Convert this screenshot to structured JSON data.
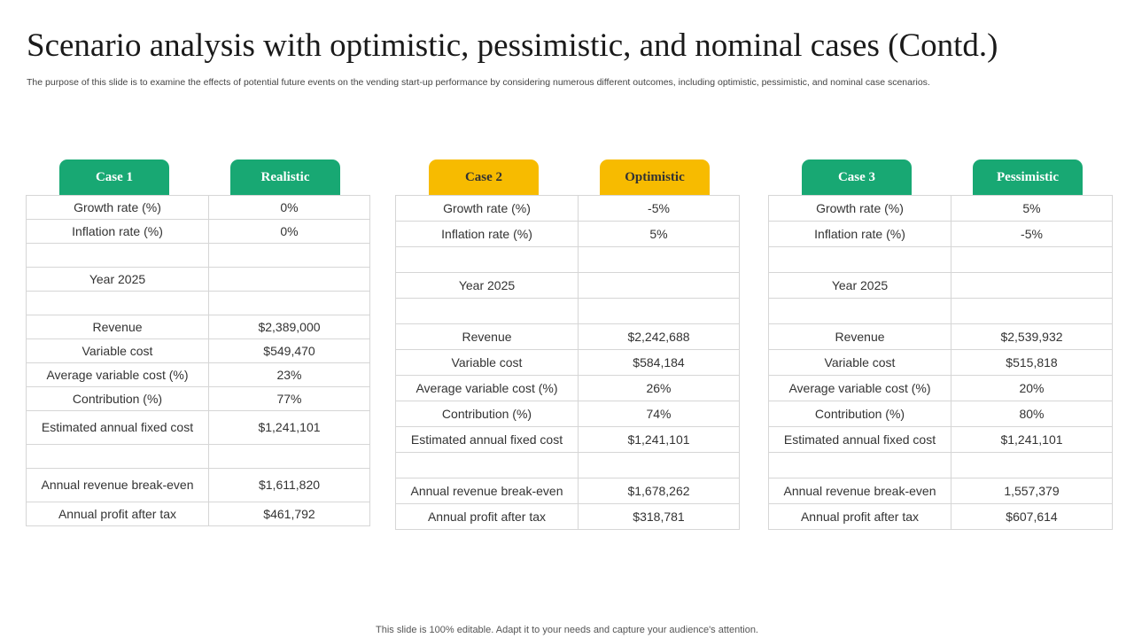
{
  "title": "Scenario analysis with optimistic, pessimistic, and nominal cases (Contd.)",
  "subtitle": "The purpose of this slide is to examine the effects of potential future events on the vending start-up performance by considering numerous different outcomes, including optimistic, pessimistic, and nominal case scenarios.",
  "footer": "This slide is 100% editable. Adapt it to your needs and capture your audience's attention.",
  "colors": {
    "green": "#18a873",
    "yellow": "#f7bb00"
  },
  "panels": [
    {
      "case_label": "Case 1",
      "scenario_label": "Realistic",
      "rows": [
        {
          "label": "Growth rate (%)",
          "value": "0%"
        },
        {
          "label": "Inflation rate (%)",
          "value": "0%"
        },
        {
          "label": "",
          "value": ""
        },
        {
          "label": "Year 2025",
          "value": ""
        },
        {
          "label": "",
          "value": ""
        },
        {
          "label": "Revenue",
          "value": "$2,389,000"
        },
        {
          "label": "Variable cost",
          "value": "$549,470"
        },
        {
          "label": "Average variable cost (%)",
          "value": "23%"
        },
        {
          "label": "Contribution (%)",
          "value": "77%"
        },
        {
          "label": "Estimated annual fixed cost",
          "value": "$1,241,101"
        },
        {
          "label": "",
          "value": ""
        },
        {
          "label": "Annual revenue break-even",
          "value": "$1,611,820"
        },
        {
          "label": "Annual profit after tax",
          "value": "$461,792"
        }
      ]
    },
    {
      "case_label": "Case 2",
      "scenario_label": "Optimistic",
      "rows": [
        {
          "label": "Growth rate (%)",
          "value": "-5%"
        },
        {
          "label": "Inflation rate (%)",
          "value": "5%"
        },
        {
          "label": "",
          "value": ""
        },
        {
          "label": "Year 2025",
          "value": ""
        },
        {
          "label": "",
          "value": ""
        },
        {
          "label": "Revenue",
          "value": "$2,242,688"
        },
        {
          "label": "Variable cost",
          "value": "$584,184"
        },
        {
          "label": "Average variable cost (%)",
          "value": "26%"
        },
        {
          "label": "Contribution (%)",
          "value": "74%"
        },
        {
          "label": "Estimated annual fixed cost",
          "value": "$1,241,101"
        },
        {
          "label": "",
          "value": ""
        },
        {
          "label": "Annual revenue break-even",
          "value": "$1,678,262"
        },
        {
          "label": "Annual profit after tax",
          "value": "$318,781"
        }
      ]
    },
    {
      "case_label": "Case 3",
      "scenario_label": "Pessimistic",
      "rows": [
        {
          "label": "Growth rate (%)",
          "value": "5%"
        },
        {
          "label": "Inflation rate (%)",
          "value": "-5%"
        },
        {
          "label": "",
          "value": ""
        },
        {
          "label": "Year 2025",
          "value": ""
        },
        {
          "label": "",
          "value": ""
        },
        {
          "label": "Revenue",
          "value": "$2,539,932"
        },
        {
          "label": "Variable cost",
          "value": "$515,818"
        },
        {
          "label": "Average variable cost (%)",
          "value": "20%"
        },
        {
          "label": "Contribution (%)",
          "value": "80%"
        },
        {
          "label": "Estimated annual fixed cost",
          "value": "$1,241,101"
        },
        {
          "label": "",
          "value": ""
        },
        {
          "label": "Annual revenue break-even",
          "value": "1,557,379"
        },
        {
          "label": "Annual profit after tax",
          "value": "$607,614"
        }
      ]
    }
  ]
}
